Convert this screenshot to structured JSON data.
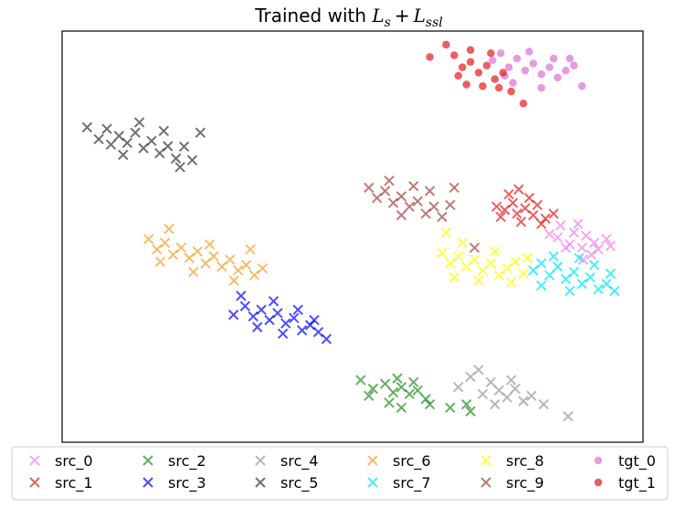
{
  "chart_data": {
    "type": "scatter",
    "title_prefix": "Trained with ",
    "title_math": [
      "L",
      "s",
      "+",
      "L",
      "ssl"
    ],
    "xlabel": "",
    "ylabel": "",
    "xlim": [
      0,
      100
    ],
    "ylim": [
      0,
      100
    ],
    "grid": false,
    "ticks": false,
    "legend_position": "bottom",
    "series": [
      {
        "name": "src_0",
        "marker": "x",
        "color": "#ee82ee",
        "points": [
          [
            83.9,
            50.6
          ],
          [
            85.3,
            49.8
          ],
          [
            87.4,
            48.1
          ],
          [
            88.1,
            51.0
          ],
          [
            89.5,
            47.3
          ],
          [
            90.2,
            50.2
          ],
          [
            91.6,
            48.5
          ],
          [
            92.3,
            46.9
          ],
          [
            93.7,
            49.4
          ],
          [
            85.8,
            52.7
          ],
          [
            88.8,
            53.1
          ],
          [
            91.1,
            45.6
          ],
          [
            94.4,
            47.7
          ],
          [
            86.7,
            47.3
          ],
          [
            89.7,
            44.4
          ]
        ]
      },
      {
        "name": "src_1",
        "marker": "x",
        "color": "#e41a1c",
        "points": [
          [
            74.8,
            57.3
          ],
          [
            76.2,
            56.5
          ],
          [
            77.6,
            58.2
          ],
          [
            78.3,
            55.6
          ],
          [
            79.7,
            56.9
          ],
          [
            81.1,
            55.2
          ],
          [
            81.8,
            57.7
          ],
          [
            83.2,
            54.4
          ],
          [
            84.6,
            55.6
          ],
          [
            76.9,
            60.3
          ],
          [
            79.0,
            53.6
          ],
          [
            80.4,
            59.4
          ],
          [
            82.5,
            53.1
          ],
          [
            75.5,
            54.8
          ],
          [
            78.6,
            61.5
          ]
        ]
      },
      {
        "name": "src_2",
        "marker": "x",
        "color": "#228b22",
        "points": [
          [
            51.4,
            15.1
          ],
          [
            53.5,
            13.0
          ],
          [
            55.6,
            14.2
          ],
          [
            57.0,
            12.1
          ],
          [
            58.4,
            13.4
          ],
          [
            59.8,
            11.7
          ],
          [
            61.2,
            12.6
          ],
          [
            62.6,
            10.5
          ],
          [
            56.3,
            9.6
          ],
          [
            58.4,
            8.4
          ],
          [
            66.8,
            8.4
          ],
          [
            69.6,
            9.2
          ],
          [
            70.3,
            7.5
          ],
          [
            60.5,
            14.6
          ],
          [
            63.3,
            9.2
          ],
          [
            52.8,
            11.3
          ],
          [
            57.7,
            15.5
          ]
        ]
      },
      {
        "name": "src_3",
        "marker": "x",
        "color": "#0000ff",
        "points": [
          [
            29.5,
            31.0
          ],
          [
            31.5,
            33.1
          ],
          [
            32.9,
            30.6
          ],
          [
            34.3,
            32.2
          ],
          [
            35.7,
            29.7
          ],
          [
            37.1,
            31.4
          ],
          [
            38.5,
            28.9
          ],
          [
            39.9,
            30.2
          ],
          [
            41.3,
            27.2
          ],
          [
            42.7,
            28.5
          ],
          [
            44.1,
            26.8
          ],
          [
            45.5,
            25.1
          ],
          [
            36.4,
            34.3
          ],
          [
            40.6,
            32.2
          ],
          [
            33.6,
            28.0
          ],
          [
            38.0,
            26.4
          ],
          [
            43.4,
            29.7
          ],
          [
            30.8,
            35.6
          ]
        ]
      },
      {
        "name": "src_4",
        "marker": "x",
        "color": "#999999",
        "points": [
          [
            68.2,
            13.4
          ],
          [
            70.3,
            15.9
          ],
          [
            72.4,
            11.7
          ],
          [
            73.8,
            14.6
          ],
          [
            75.2,
            12.6
          ],
          [
            76.6,
            10.9
          ],
          [
            78.0,
            13.0
          ],
          [
            79.4,
            10.0
          ],
          [
            80.8,
            11.3
          ],
          [
            82.9,
            9.2
          ],
          [
            87.1,
            6.3
          ],
          [
            71.7,
            17.6
          ],
          [
            77.3,
            15.1
          ],
          [
            74.5,
            9.2
          ]
        ]
      },
      {
        "name": "src_5",
        "marker": "x",
        "color": "#333333",
        "points": [
          [
            4.3,
            76.6
          ],
          [
            6.3,
            73.7
          ],
          [
            7.7,
            76.2
          ],
          [
            9.8,
            74.5
          ],
          [
            11.2,
            72.8
          ],
          [
            12.6,
            75.3
          ],
          [
            14.0,
            71.5
          ],
          [
            15.4,
            73.3
          ],
          [
            16.8,
            70.3
          ],
          [
            18.2,
            72.0
          ],
          [
            19.6,
            69.0
          ],
          [
            21.0,
            71.9
          ],
          [
            22.4,
            68.6
          ],
          [
            13.3,
            77.8
          ],
          [
            17.5,
            75.7
          ],
          [
            10.5,
            69.9
          ],
          [
            20.3,
            66.9
          ],
          [
            23.8,
            75.3
          ],
          [
            8.4,
            72.4
          ]
        ]
      },
      {
        "name": "src_6",
        "marker": "x",
        "color": "#f0a030",
        "points": [
          [
            14.9,
            49.4
          ],
          [
            16.3,
            46.9
          ],
          [
            17.7,
            48.5
          ],
          [
            19.1,
            45.6
          ],
          [
            20.5,
            47.3
          ],
          [
            21.9,
            44.8
          ],
          [
            23.3,
            46.4
          ],
          [
            24.7,
            43.5
          ],
          [
            26.1,
            45.2
          ],
          [
            27.5,
            42.7
          ],
          [
            28.9,
            44.4
          ],
          [
            30.3,
            41.8
          ],
          [
            31.7,
            43.1
          ],
          [
            33.1,
            40.6
          ],
          [
            18.4,
            51.9
          ],
          [
            25.4,
            48.1
          ],
          [
            29.6,
            39.3
          ],
          [
            22.6,
            41.4
          ],
          [
            32.4,
            46.9
          ],
          [
            16.9,
            43.9
          ],
          [
            34.5,
            42.3
          ]
        ]
      },
      {
        "name": "src_7",
        "marker": "x",
        "color": "#00e5ee",
        "points": [
          [
            81.1,
            41.8
          ],
          [
            82.5,
            43.5
          ],
          [
            83.9,
            40.6
          ],
          [
            85.3,
            42.7
          ],
          [
            86.7,
            39.7
          ],
          [
            88.1,
            41.4
          ],
          [
            89.5,
            38.5
          ],
          [
            90.9,
            40.1
          ],
          [
            92.3,
            37.2
          ],
          [
            93.7,
            38.5
          ],
          [
            95.1,
            36.8
          ],
          [
            84.6,
            45.2
          ],
          [
            91.6,
            43.1
          ],
          [
            87.4,
            36.8
          ],
          [
            94.4,
            41.0
          ],
          [
            82.5,
            38.1
          ],
          [
            89.0,
            44.8
          ]
        ]
      },
      {
        "name": "src_8",
        "marker": "x",
        "color": "#ffff00",
        "points": [
          [
            65.4,
            46.0
          ],
          [
            66.8,
            43.5
          ],
          [
            68.2,
            45.2
          ],
          [
            69.6,
            42.7
          ],
          [
            71.0,
            44.4
          ],
          [
            72.4,
            41.8
          ],
          [
            73.8,
            43.5
          ],
          [
            75.2,
            40.6
          ],
          [
            76.6,
            42.3
          ],
          [
            78.0,
            43.9
          ],
          [
            79.4,
            41.0
          ],
          [
            68.9,
            48.5
          ],
          [
            74.5,
            46.4
          ],
          [
            71.7,
            39.3
          ],
          [
            77.3,
            38.9
          ],
          [
            67.5,
            40.1
          ],
          [
            80.1,
            44.8
          ],
          [
            66.1,
            51.0
          ]
        ]
      },
      {
        "name": "src_9",
        "marker": "x",
        "color": "#a0413f",
        "points": [
          [
            52.8,
            61.9
          ],
          [
            54.2,
            59.4
          ],
          [
            55.6,
            61.1
          ],
          [
            57.0,
            58.2
          ],
          [
            58.4,
            59.8
          ],
          [
            59.8,
            57.3
          ],
          [
            61.2,
            58.6
          ],
          [
            62.6,
            55.6
          ],
          [
            64.0,
            57.3
          ],
          [
            65.4,
            54.8
          ],
          [
            56.3,
            63.6
          ],
          [
            60.5,
            62.3
          ],
          [
            63.3,
            61.1
          ],
          [
            67.5,
            61.9
          ],
          [
            58.4,
            55.2
          ],
          [
            66.8,
            57.7
          ],
          [
            71.0,
            47.3
          ]
        ]
      },
      {
        "name": "tgt_0",
        "marker": "o",
        "color": "#da70d6",
        "points": [
          [
            74.1,
            92.9
          ],
          [
            75.5,
            94.6
          ],
          [
            76.9,
            91.2
          ],
          [
            78.3,
            93.3
          ],
          [
            79.7,
            90.4
          ],
          [
            81.1,
            92.1
          ],
          [
            82.5,
            89.5
          ],
          [
            83.9,
            91.2
          ],
          [
            85.3,
            88.7
          ],
          [
            86.7,
            90.4
          ],
          [
            88.1,
            91.6
          ],
          [
            76.2,
            89.1
          ],
          [
            80.4,
            95.0
          ],
          [
            84.6,
            93.3
          ],
          [
            89.5,
            86.6
          ],
          [
            77.6,
            87.4
          ],
          [
            82.5,
            86.2
          ],
          [
            87.4,
            93.3
          ]
        ]
      },
      {
        "name": "tgt_1",
        "marker": "o",
        "color": "#e41a1c",
        "points": [
          [
            66.1,
            96.7
          ],
          [
            63.3,
            93.7
          ],
          [
            67.5,
            94.1
          ],
          [
            68.9,
            91.2
          ],
          [
            70.3,
            92.5
          ],
          [
            71.7,
            89.9
          ],
          [
            73.1,
            91.6
          ],
          [
            74.5,
            88.3
          ],
          [
            75.9,
            89.9
          ],
          [
            69.6,
            87.0
          ],
          [
            72.4,
            86.6
          ],
          [
            77.3,
            85.3
          ],
          [
            79.4,
            82.4
          ],
          [
            70.3,
            95.4
          ],
          [
            73.8,
            94.6
          ],
          [
            68.2,
            89.1
          ],
          [
            75.2,
            86.2
          ]
        ]
      }
    ]
  }
}
